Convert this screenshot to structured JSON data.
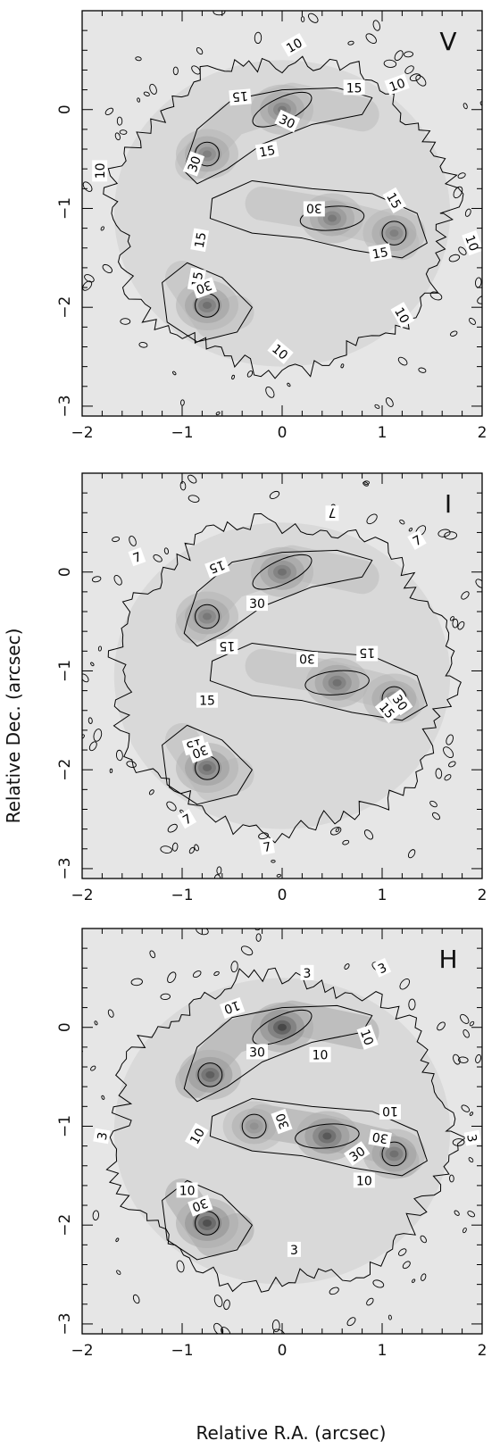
{
  "chart_data": {
    "type": "heatmap",
    "xlabel": "Relative R.A. (arcsec)",
    "ylabel": "Relative Dec. (arcsec)",
    "xlim": [
      -2,
      2
    ],
    "ylim": [
      -3.1,
      1.0
    ],
    "xticks": [
      -2,
      -1,
      0,
      1,
      2
    ],
    "yticks": [
      -3,
      -2,
      -1,
      0
    ],
    "grid": false,
    "panels": [
      {
        "band": "V",
        "levels": [
          10,
          15,
          30
        ],
        "peaks": [
          {
            "x": -0.75,
            "y": -1.98,
            "amp": 0.55
          },
          {
            "x": 0.5,
            "y": -1.1,
            "amp": 0.5
          },
          {
            "x": 1.12,
            "y": -1.25,
            "amp": 0.45
          },
          {
            "x": 0.0,
            "y": 0.0,
            "amp": 0.5
          },
          {
            "x": -0.75,
            "y": -0.45,
            "amp": 0.45
          }
        ],
        "contour_labels": [
          {
            "text": "10",
            "x": 0.12,
            "y": 0.65,
            "rot": 30
          },
          {
            "text": "10",
            "x": 1.15,
            "y": 0.25,
            "rot": 20
          },
          {
            "text": "10",
            "x": -1.82,
            "y": -0.62,
            "rot": 90
          },
          {
            "text": "10",
            "x": 1.9,
            "y": -1.35,
            "rot": -70
          },
          {
            "text": "10",
            "x": 1.2,
            "y": -2.08,
            "rot": -60
          },
          {
            "text": "10",
            "x": -0.02,
            "y": -2.45,
            "rot": -40
          },
          {
            "text": "15",
            "x": -0.42,
            "y": 0.13,
            "rot": 185
          },
          {
            "text": "15",
            "x": 0.72,
            "y": 0.22,
            "rot": 0
          },
          {
            "text": "15",
            "x": -0.15,
            "y": -0.42,
            "rot": 10
          },
          {
            "text": "15",
            "x": 1.12,
            "y": -0.92,
            "rot": -60
          },
          {
            "text": "15",
            "x": 0.98,
            "y": -1.45,
            "rot": 10
          },
          {
            "text": "15",
            "x": -0.82,
            "y": -1.32,
            "rot": 80
          },
          {
            "text": "15",
            "x": -0.85,
            "y": -1.72,
            "rot": 80
          },
          {
            "text": "30",
            "x": 0.05,
            "y": -0.12,
            "rot": -25
          },
          {
            "text": "30",
            "x": -0.88,
            "y": -0.55,
            "rot": 70
          },
          {
            "text": "30",
            "x": 0.32,
            "y": -1.0,
            "rot": 180
          },
          {
            "text": "30",
            "x": -0.78,
            "y": -1.8,
            "rot": 200
          }
        ]
      },
      {
        "band": "I",
        "levels": [
          7,
          15,
          30
        ],
        "peaks": [
          {
            "x": -0.75,
            "y": -1.98,
            "amp": 0.6
          },
          {
            "x": 0.55,
            "y": -1.12,
            "amp": 0.55
          },
          {
            "x": 1.12,
            "y": -1.28,
            "amp": 0.45
          },
          {
            "x": 0.0,
            "y": 0.0,
            "amp": 0.55
          },
          {
            "x": -0.75,
            "y": -0.45,
            "amp": 0.5
          }
        ],
        "contour_labels": [
          {
            "text": "7",
            "x": 0.5,
            "y": 0.6,
            "rot": 180
          },
          {
            "text": "7",
            "x": 1.35,
            "y": 0.32,
            "rot": 30
          },
          {
            "text": "7",
            "x": -1.45,
            "y": 0.15,
            "rot": 20
          },
          {
            "text": "7",
            "x": -0.95,
            "y": -2.5,
            "rot": 30
          },
          {
            "text": "7",
            "x": -0.15,
            "y": -2.78,
            "rot": 10
          },
          {
            "text": "15",
            "x": -0.65,
            "y": 0.05,
            "rot": 200
          },
          {
            "text": "15",
            "x": -0.55,
            "y": -0.75,
            "rot": 180
          },
          {
            "text": "15",
            "x": 0.85,
            "y": -0.82,
            "rot": 180
          },
          {
            "text": "15",
            "x": -0.75,
            "y": -1.3,
            "rot": 0
          },
          {
            "text": "15",
            "x": 1.05,
            "y": -1.4,
            "rot": -50
          },
          {
            "text": "15",
            "x": -0.88,
            "y": -1.75,
            "rot": 195
          },
          {
            "text": "30",
            "x": -0.25,
            "y": -0.32,
            "rot": 0
          },
          {
            "text": "30",
            "x": 0.25,
            "y": -0.88,
            "rot": 180
          },
          {
            "text": "30",
            "x": 1.18,
            "y": -1.32,
            "rot": -55
          },
          {
            "text": "30",
            "x": -0.82,
            "y": -1.82,
            "rot": 200
          }
        ]
      },
      {
        "band": "H",
        "levels": [
          3,
          10,
          30
        ],
        "peaks": [
          {
            "x": -0.75,
            "y": -1.98,
            "amp": 0.75
          },
          {
            "x": 0.45,
            "y": -1.1,
            "amp": 0.7
          },
          {
            "x": 1.12,
            "y": -1.28,
            "amp": 0.55
          },
          {
            "x": 0.0,
            "y": 0.0,
            "amp": 0.8
          },
          {
            "x": -0.72,
            "y": -0.48,
            "amp": 0.65
          },
          {
            "x": -0.28,
            "y": -1.0,
            "amp": 0.35
          }
        ],
        "contour_labels": [
          {
            "text": "3",
            "x": 0.25,
            "y": 0.55,
            "rot": 0
          },
          {
            "text": "3",
            "x": 1.0,
            "y": 0.6,
            "rot": 25
          },
          {
            "text": "3",
            "x": 1.9,
            "y": -1.12,
            "rot": -80
          },
          {
            "text": "3",
            "x": -1.8,
            "y": -1.1,
            "rot": 80
          },
          {
            "text": "3",
            "x": 0.12,
            "y": -2.25,
            "rot": 0
          },
          {
            "text": "10",
            "x": -0.5,
            "y": 0.2,
            "rot": 200
          },
          {
            "text": "10",
            "x": 0.85,
            "y": -0.1,
            "rot": -70
          },
          {
            "text": "10",
            "x": 0.38,
            "y": -0.28,
            "rot": 0
          },
          {
            "text": "10",
            "x": 1.08,
            "y": -0.85,
            "rot": 180
          },
          {
            "text": "10",
            "x": -0.85,
            "y": -1.1,
            "rot": 60
          },
          {
            "text": "10",
            "x": -0.95,
            "y": -1.65,
            "rot": 0
          },
          {
            "text": "10",
            "x": 0.82,
            "y": -1.55,
            "rot": 0
          },
          {
            "text": "30",
            "x": -0.25,
            "y": -0.25,
            "rot": 0
          },
          {
            "text": "30",
            "x": 0.0,
            "y": -0.95,
            "rot": 110
          },
          {
            "text": "30",
            "x": 0.98,
            "y": -1.12,
            "rot": 170
          },
          {
            "text": "30",
            "x": 0.75,
            "y": -1.28,
            "rot": 35
          },
          {
            "text": "30",
            "x": -0.82,
            "y": -1.8,
            "rot": 200
          }
        ]
      }
    ]
  }
}
